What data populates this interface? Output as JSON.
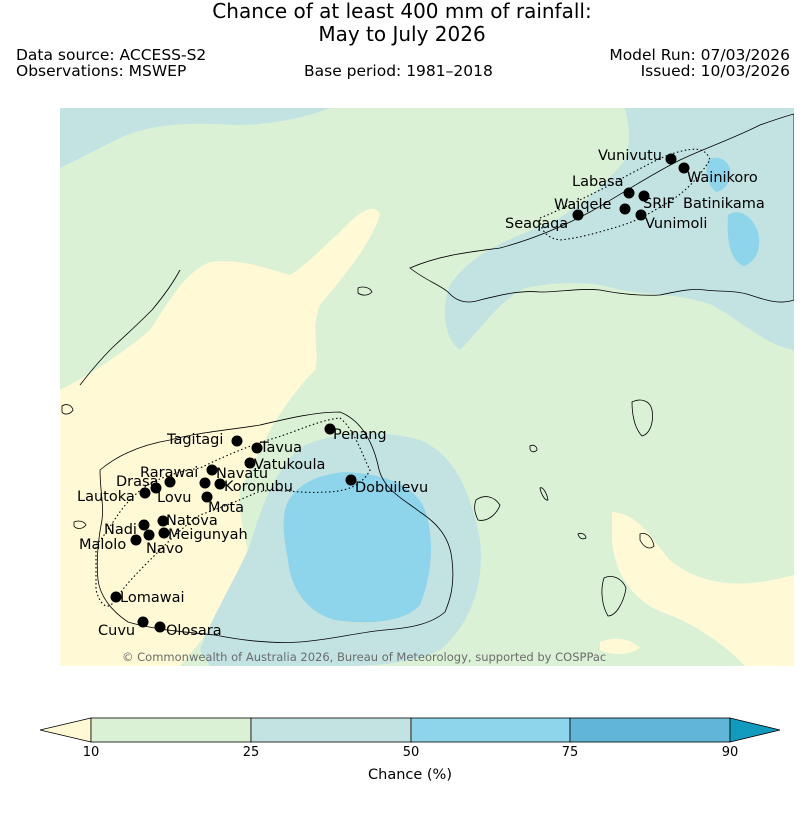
{
  "header": {
    "title_line1": "Chance of at least 400 mm of rainfall:",
    "title_line2": "May to July 2026",
    "data_source": "Data source: ACCESS-S2",
    "observations": "Observations: MSWEP",
    "base_period": "Base period: 1981–2018",
    "model_run": "Model Run: 07/03/2026",
    "issued": "Issued: 10/03/2026"
  },
  "map": {
    "copyright": "© Commonwealth of Australia 2026, Bureau of Meteorology, supported by COSPPac",
    "places": [
      {
        "name": "Vunivutu"
      },
      {
        "name": "Wainikoro"
      },
      {
        "name": "Labasa"
      },
      {
        "name": "SRIF"
      },
      {
        "name": "Batinikama"
      },
      {
        "name": "Waiqele"
      },
      {
        "name": "Seaqaqa"
      },
      {
        "name": "Vunimoli"
      },
      {
        "name": "Tagitagi"
      },
      {
        "name": "Penang"
      },
      {
        "name": "Tavua"
      },
      {
        "name": "Vatukoula"
      },
      {
        "name": "Rarawai"
      },
      {
        "name": "Navatu"
      },
      {
        "name": "Drasa"
      },
      {
        "name": "Koronubu"
      },
      {
        "name": "Lautoka"
      },
      {
        "name": "Lovu"
      },
      {
        "name": "Mota"
      },
      {
        "name": "Dobuilevu"
      },
      {
        "name": "Natova"
      },
      {
        "name": "Nadi"
      },
      {
        "name": "Meigunyah"
      },
      {
        "name": "Malolo"
      },
      {
        "name": "Navo"
      },
      {
        "name": "Lomawai"
      },
      {
        "name": "Cuvu"
      },
      {
        "name": "Olosara"
      }
    ]
  },
  "legend": {
    "title": "Chance (%)",
    "ticks": [
      "10",
      "25",
      "50",
      "75",
      "90"
    ],
    "colors": {
      "below_10": "#fff9d6",
      "10_25": "#dbf1d6",
      "25_50": "#c3e3e3",
      "50_75": "#8ed4ea",
      "75_90": "#61b5d6",
      "above_90": "#139bbf"
    }
  }
}
